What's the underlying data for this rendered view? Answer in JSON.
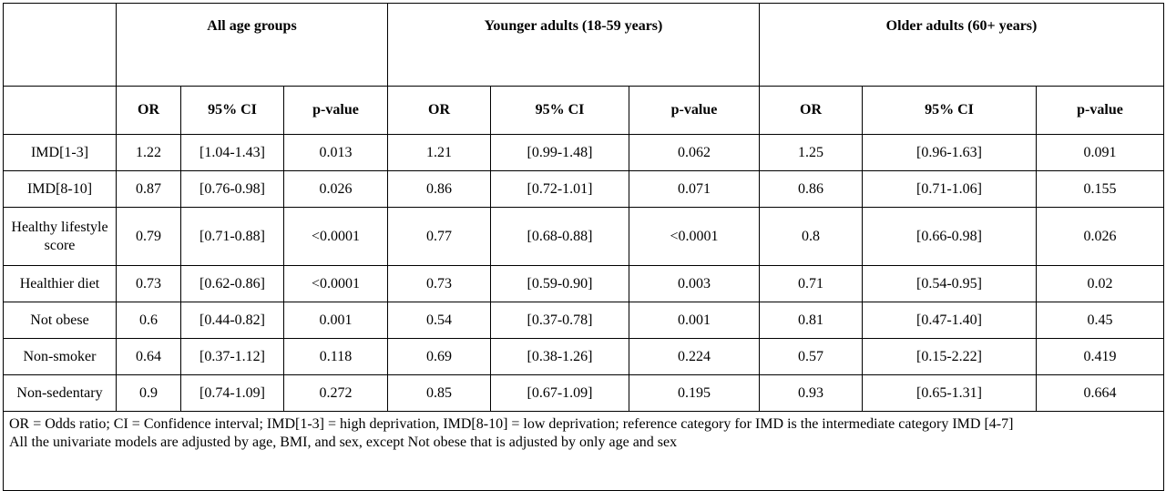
{
  "table": {
    "groups": [
      "All age groups",
      "Younger adults (18-59 years)",
      "Older  adults (60+ years)"
    ],
    "subheaders": [
      "OR",
      "95% CI",
      "p-value"
    ],
    "rows": [
      {
        "label": "IMD[1-3]",
        "values": [
          "1.22",
          "[1.04-1.43]",
          "0.013",
          "1.21",
          "[0.99-1.48]",
          "0.062",
          "1.25",
          "[0.96-1.63]",
          "0.091"
        ]
      },
      {
        "label": "IMD[8-10]",
        "values": [
          "0.87",
          "[0.76-0.98]",
          "0.026",
          "0.86",
          "[0.72-1.01]",
          "0.071",
          "0.86",
          "[0.71-1.06]",
          "0.155"
        ]
      },
      {
        "label": "Healthy lifestyle score",
        "values": [
          "0.79",
          "[0.71-0.88]",
          "<0.0001",
          "0.77",
          "[0.68-0.88]",
          "<0.0001",
          "0.8",
          "[0.66-0.98]",
          "0.026"
        ]
      },
      {
        "label": "Healthier diet",
        "values": [
          "0.73",
          "[0.62-0.86]",
          "<0.0001",
          "0.73",
          "[0.59-0.90]",
          "0.003",
          "0.71",
          "[0.54-0.95]",
          "0.02"
        ]
      },
      {
        "label": "Not obese",
        "values": [
          "0.6",
          "[0.44-0.82]",
          "0.001",
          "0.54",
          "[0.37-0.78]",
          "0.001",
          "0.81",
          "[0.47-1.40]",
          "0.45"
        ]
      },
      {
        "label": "Non-smoker",
        "values": [
          "0.64",
          "[0.37-1.12]",
          "0.118",
          "0.69",
          "[0.38-1.26]",
          "0.224",
          "0.57",
          "[0.15-2.22]",
          "0.419"
        ]
      },
      {
        "label": "Non-sedentary",
        "values": [
          "0.9",
          "[0.74-1.09]",
          "0.272",
          "0.85",
          "[0.67-1.09]",
          "0.195",
          "0.93",
          "[0.65-1.31]",
          "0.664"
        ]
      }
    ],
    "footnotes": [
      "OR = Odds ratio; CI = Confidence interval; IMD[1-3] = high deprivation, IMD[8-10] = low deprivation; reference category for IMD is the intermediate category  IMD [4-7]",
      "All the univariate models are adjusted by age, BMI, and sex, except Not obese  that is adjusted by only age and sex"
    ]
  }
}
